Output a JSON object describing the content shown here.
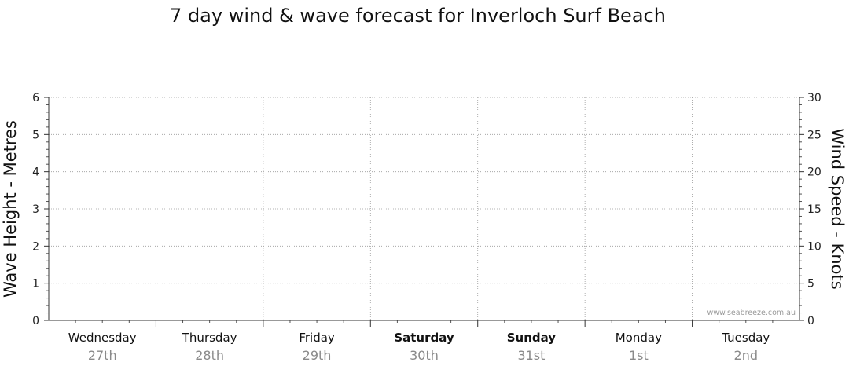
{
  "chart_data": {
    "type": "line",
    "title": "7 day wind & wave forecast for Inverloch Surf Beach",
    "ylabel": "Wave Height - Metres",
    "y2label": "Wind Speed - Knots",
    "ylim": [
      0,
      6
    ],
    "y2lim": [
      0,
      30
    ],
    "yticks": [
      "0",
      "1",
      "2",
      "3",
      "4",
      "5",
      "6"
    ],
    "y2ticks": [
      "0",
      "5",
      "10",
      "15",
      "20",
      "25",
      "30"
    ],
    "grid": true,
    "days": [
      {
        "name": "Wednesday",
        "date": "27th",
        "weekend": false
      },
      {
        "name": "Thursday",
        "date": "28th",
        "weekend": false
      },
      {
        "name": "Friday",
        "date": "29th",
        "weekend": false
      },
      {
        "name": "Saturday",
        "date": "30th",
        "weekend": true
      },
      {
        "name": "Sunday",
        "date": "31st",
        "weekend": true
      },
      {
        "name": "Monday",
        "date": "1st",
        "weekend": false
      },
      {
        "name": "Tuesday",
        "date": "2nd",
        "weekend": false
      }
    ],
    "series": [],
    "watermark": "www.seabreeze.com.au"
  }
}
